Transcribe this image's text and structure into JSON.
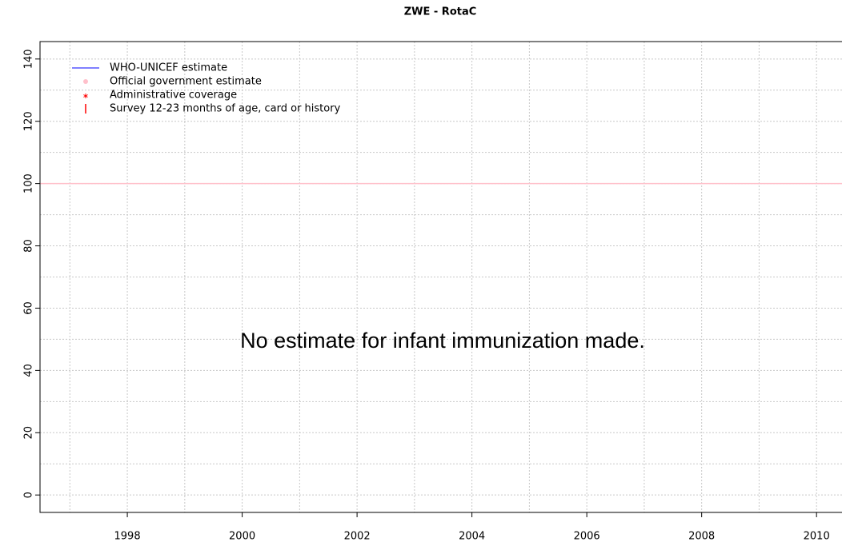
{
  "chart_data": {
    "type": "line",
    "title": "ZWE  -  RotaC",
    "annotation": "No estimate for infant immunization made.",
    "xlim": [
      1996.48,
      2010.52
    ],
    "xticks": [
      1998,
      2000,
      2002,
      2004,
      2006,
      2008,
      2010
    ],
    "xgrid": [
      1997,
      1998,
      1999,
      2000,
      2001,
      2002,
      2003,
      2004,
      2005,
      2006,
      2007,
      2008,
      2009,
      2010
    ],
    "ylim": [
      -5.6,
      145.6
    ],
    "yticks": [
      0,
      20,
      40,
      60,
      80,
      100,
      120,
      140
    ],
    "ygrid": [
      0,
      10,
      20,
      30,
      40,
      50,
      60,
      70,
      80,
      90,
      100,
      110,
      120,
      130,
      140
    ],
    "grid": true,
    "reference_line": {
      "value": 100,
      "color": "#ffc0cb"
    },
    "legend": [
      {
        "name": "WHO-UNICEF estimate",
        "color": "#0000ff",
        "symbol": "line"
      },
      {
        "name": "Official government estimate",
        "color": "#ffc0cb",
        "symbol": "dot"
      },
      {
        "name": "Administrative coverage",
        "color": "#ff0000",
        "symbol": "star"
      },
      {
        "name": "Survey 12-23 months of age, card or history",
        "color": "#ff0000",
        "symbol": "bar"
      }
    ]
  }
}
